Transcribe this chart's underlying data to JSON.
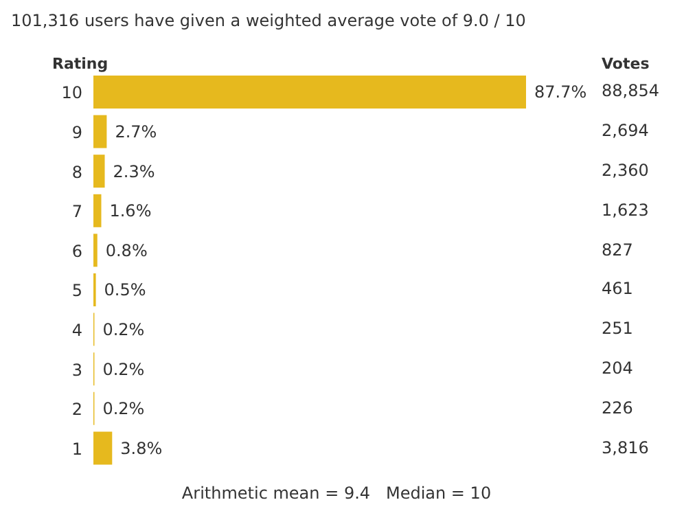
{
  "chart_data": {
    "type": "bar",
    "orientation": "horizontal",
    "title": "101,316 users have given a weighted average vote of 9.0 / 10",
    "ylabel": "Rating",
    "categories": [
      "10",
      "9",
      "8",
      "7",
      "6",
      "5",
      "4",
      "3",
      "2",
      "1"
    ],
    "values": [
      87.7,
      2.7,
      2.3,
      1.6,
      0.8,
      0.5,
      0.2,
      0.2,
      0.2,
      3.8
    ],
    "value_labels": [
      "87.7%",
      "2.7%",
      "2.3%",
      "1.6%",
      "0.8%",
      "0.5%",
      "0.2%",
      "0.2%",
      "0.2%",
      "3.8%"
    ],
    "color": "#e6b91e",
    "annotations": [
      "Votes",
      "88,854",
      "2,694",
      "2,360",
      "1,623",
      "827",
      "461",
      "251",
      "204",
      "226",
      "3,816",
      "Arithmetic mean = 9.4   Median = 10"
    ],
    "grid": false,
    "legend": false
  }
}
